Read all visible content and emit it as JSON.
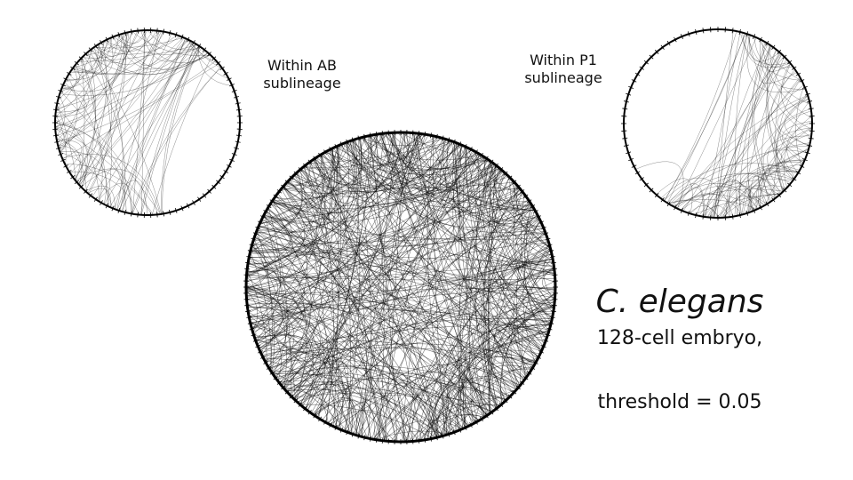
{
  "labels": {
    "ab_line1": "Within AB",
    "ab_line2": "sublineage",
    "p1_line1": "Within P1",
    "p1_line2": "sublineage",
    "species": "C. elegans",
    "embryo": "128-cell embryo,",
    "threshold": "threshold = 0.05"
  },
  "graphs": [
    {
      "name": "ab-network",
      "edges": 120,
      "node_count": 90,
      "bias": "left",
      "stroke": "#000000"
    },
    {
      "name": "p1-network",
      "edges": 110,
      "node_count": 80,
      "bias": "lower-right",
      "stroke": "#000000"
    },
    {
      "name": "full-network",
      "edges": 520,
      "node_count": 160,
      "bias": "none",
      "stroke": "#000000"
    }
  ]
}
